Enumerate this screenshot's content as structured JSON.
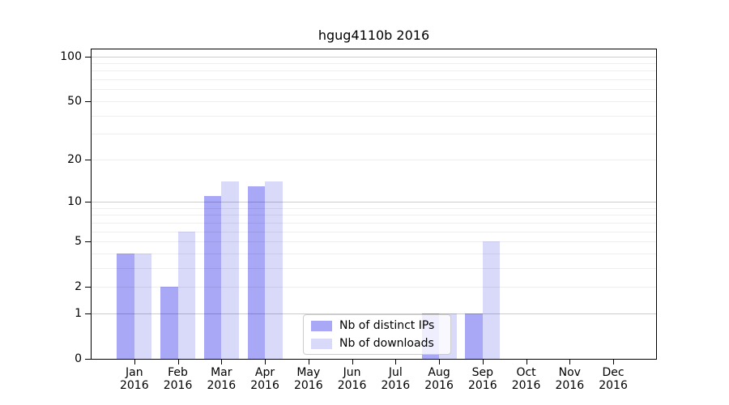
{
  "chart_data": {
    "type": "bar",
    "title": "hgug4110b 2016",
    "year_label": "2016",
    "categories": [
      "Jan",
      "Feb",
      "Mar",
      "Apr",
      "May",
      "Jun",
      "Jul",
      "Aug",
      "Sep",
      "Oct",
      "Nov",
      "Dec"
    ],
    "series": [
      {
        "name": "Nb of distinct IPs",
        "color": "#a8a8f7",
        "values": [
          4,
          2,
          11,
          13,
          0,
          0,
          0,
          1,
          1,
          0,
          0,
          0
        ]
      },
      {
        "name": "Nb of downloads",
        "color": "#d9d9f9",
        "values": [
          4,
          6,
          14,
          14,
          0,
          0,
          0,
          1,
          5,
          0,
          0,
          0
        ]
      }
    ],
    "y_axis": {
      "scale": "log1p",
      "ticks": [
        0,
        1,
        2,
        5,
        10,
        20,
        50,
        100
      ],
      "major_gridlines": [
        1,
        10,
        100
      ],
      "minor_gridlines": [
        2,
        3,
        4,
        5,
        6,
        7,
        8,
        9,
        20,
        30,
        40,
        50,
        60,
        70,
        80,
        90
      ],
      "ylim": [
        0,
        111
      ]
    },
    "grid": true,
    "legend_position": "lower-center",
    "text_color": "#000000"
  }
}
